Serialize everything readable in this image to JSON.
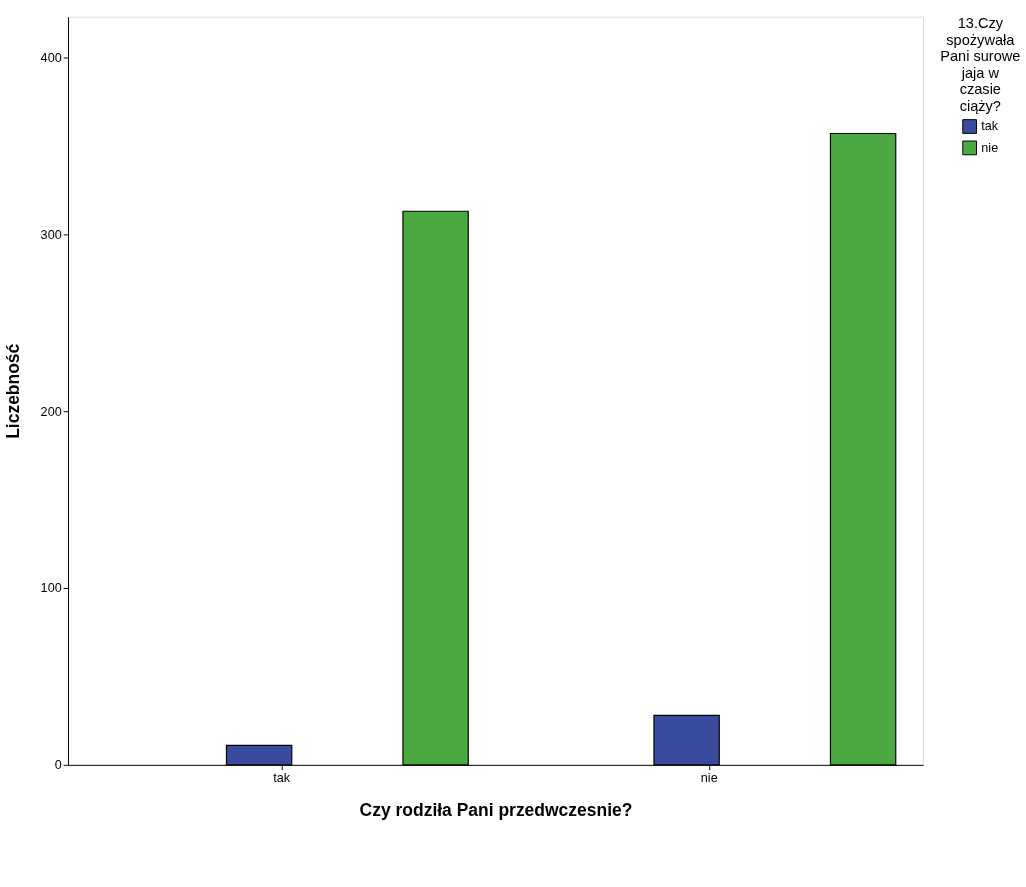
{
  "chart_data": {
    "type": "bar",
    "xlabel": "Czy rodziła Pani przedwczesnie?",
    "ylabel": "Liczebność",
    "legend_title": "13.Czy spożywała Pani surowe jaja w czasie ciąży?",
    "categories": [
      "tak",
      "nie"
    ],
    "series": [
      {
        "name": "tak",
        "color": "#3a4b9f",
        "values": [
          11,
          28
        ]
      },
      {
        "name": "nie",
        "color": "#4ca841",
        "values": [
          313,
          357
        ]
      }
    ],
    "ylim": [
      0,
      423
    ],
    "yticks": [
      0,
      100,
      200,
      300,
      400
    ],
    "grid": false,
    "legend": "top right"
  }
}
